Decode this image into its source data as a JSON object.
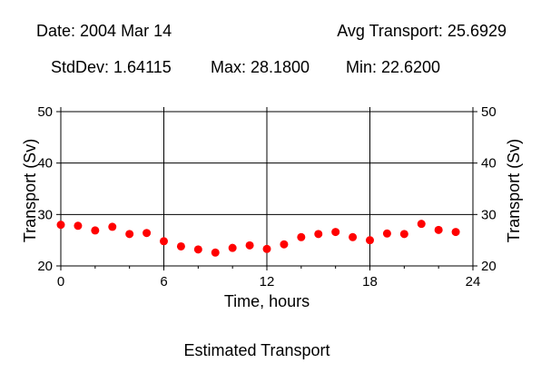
{
  "header": {
    "date": "Date: 2004 Mar 14",
    "avg": "Avg Transport: 25.6929",
    "stddev": "StdDev: 1.64115",
    "max": "Max: 28.1800",
    "min": "Min: 22.6200"
  },
  "chart_data": {
    "type": "scatter",
    "title": "Estimated Transport",
    "xlabel": "Time, hours",
    "ylabel": "Transport (Sv)",
    "xlim": [
      0,
      24
    ],
    "ylim": [
      20,
      50
    ],
    "xticks": [
      0,
      6,
      12,
      18,
      24
    ],
    "yticks": [
      20,
      30,
      40,
      50
    ],
    "grid": true,
    "marker_color": "#ff0000",
    "series": [
      {
        "x": [
          0,
          1,
          2,
          3,
          4,
          5,
          6,
          7,
          8,
          9,
          10,
          11,
          12,
          13,
          14,
          15,
          16,
          17,
          18,
          19,
          20,
          21,
          22,
          23
        ],
        "y": [
          28.0,
          27.8,
          26.9,
          27.6,
          26.2,
          26.4,
          24.8,
          23.8,
          23.2,
          22.6,
          23.5,
          24.0,
          23.3,
          24.2,
          25.6,
          26.2,
          26.6,
          25.6,
          25.0,
          26.3,
          26.2,
          28.18,
          27.0,
          26.6
        ]
      }
    ]
  }
}
